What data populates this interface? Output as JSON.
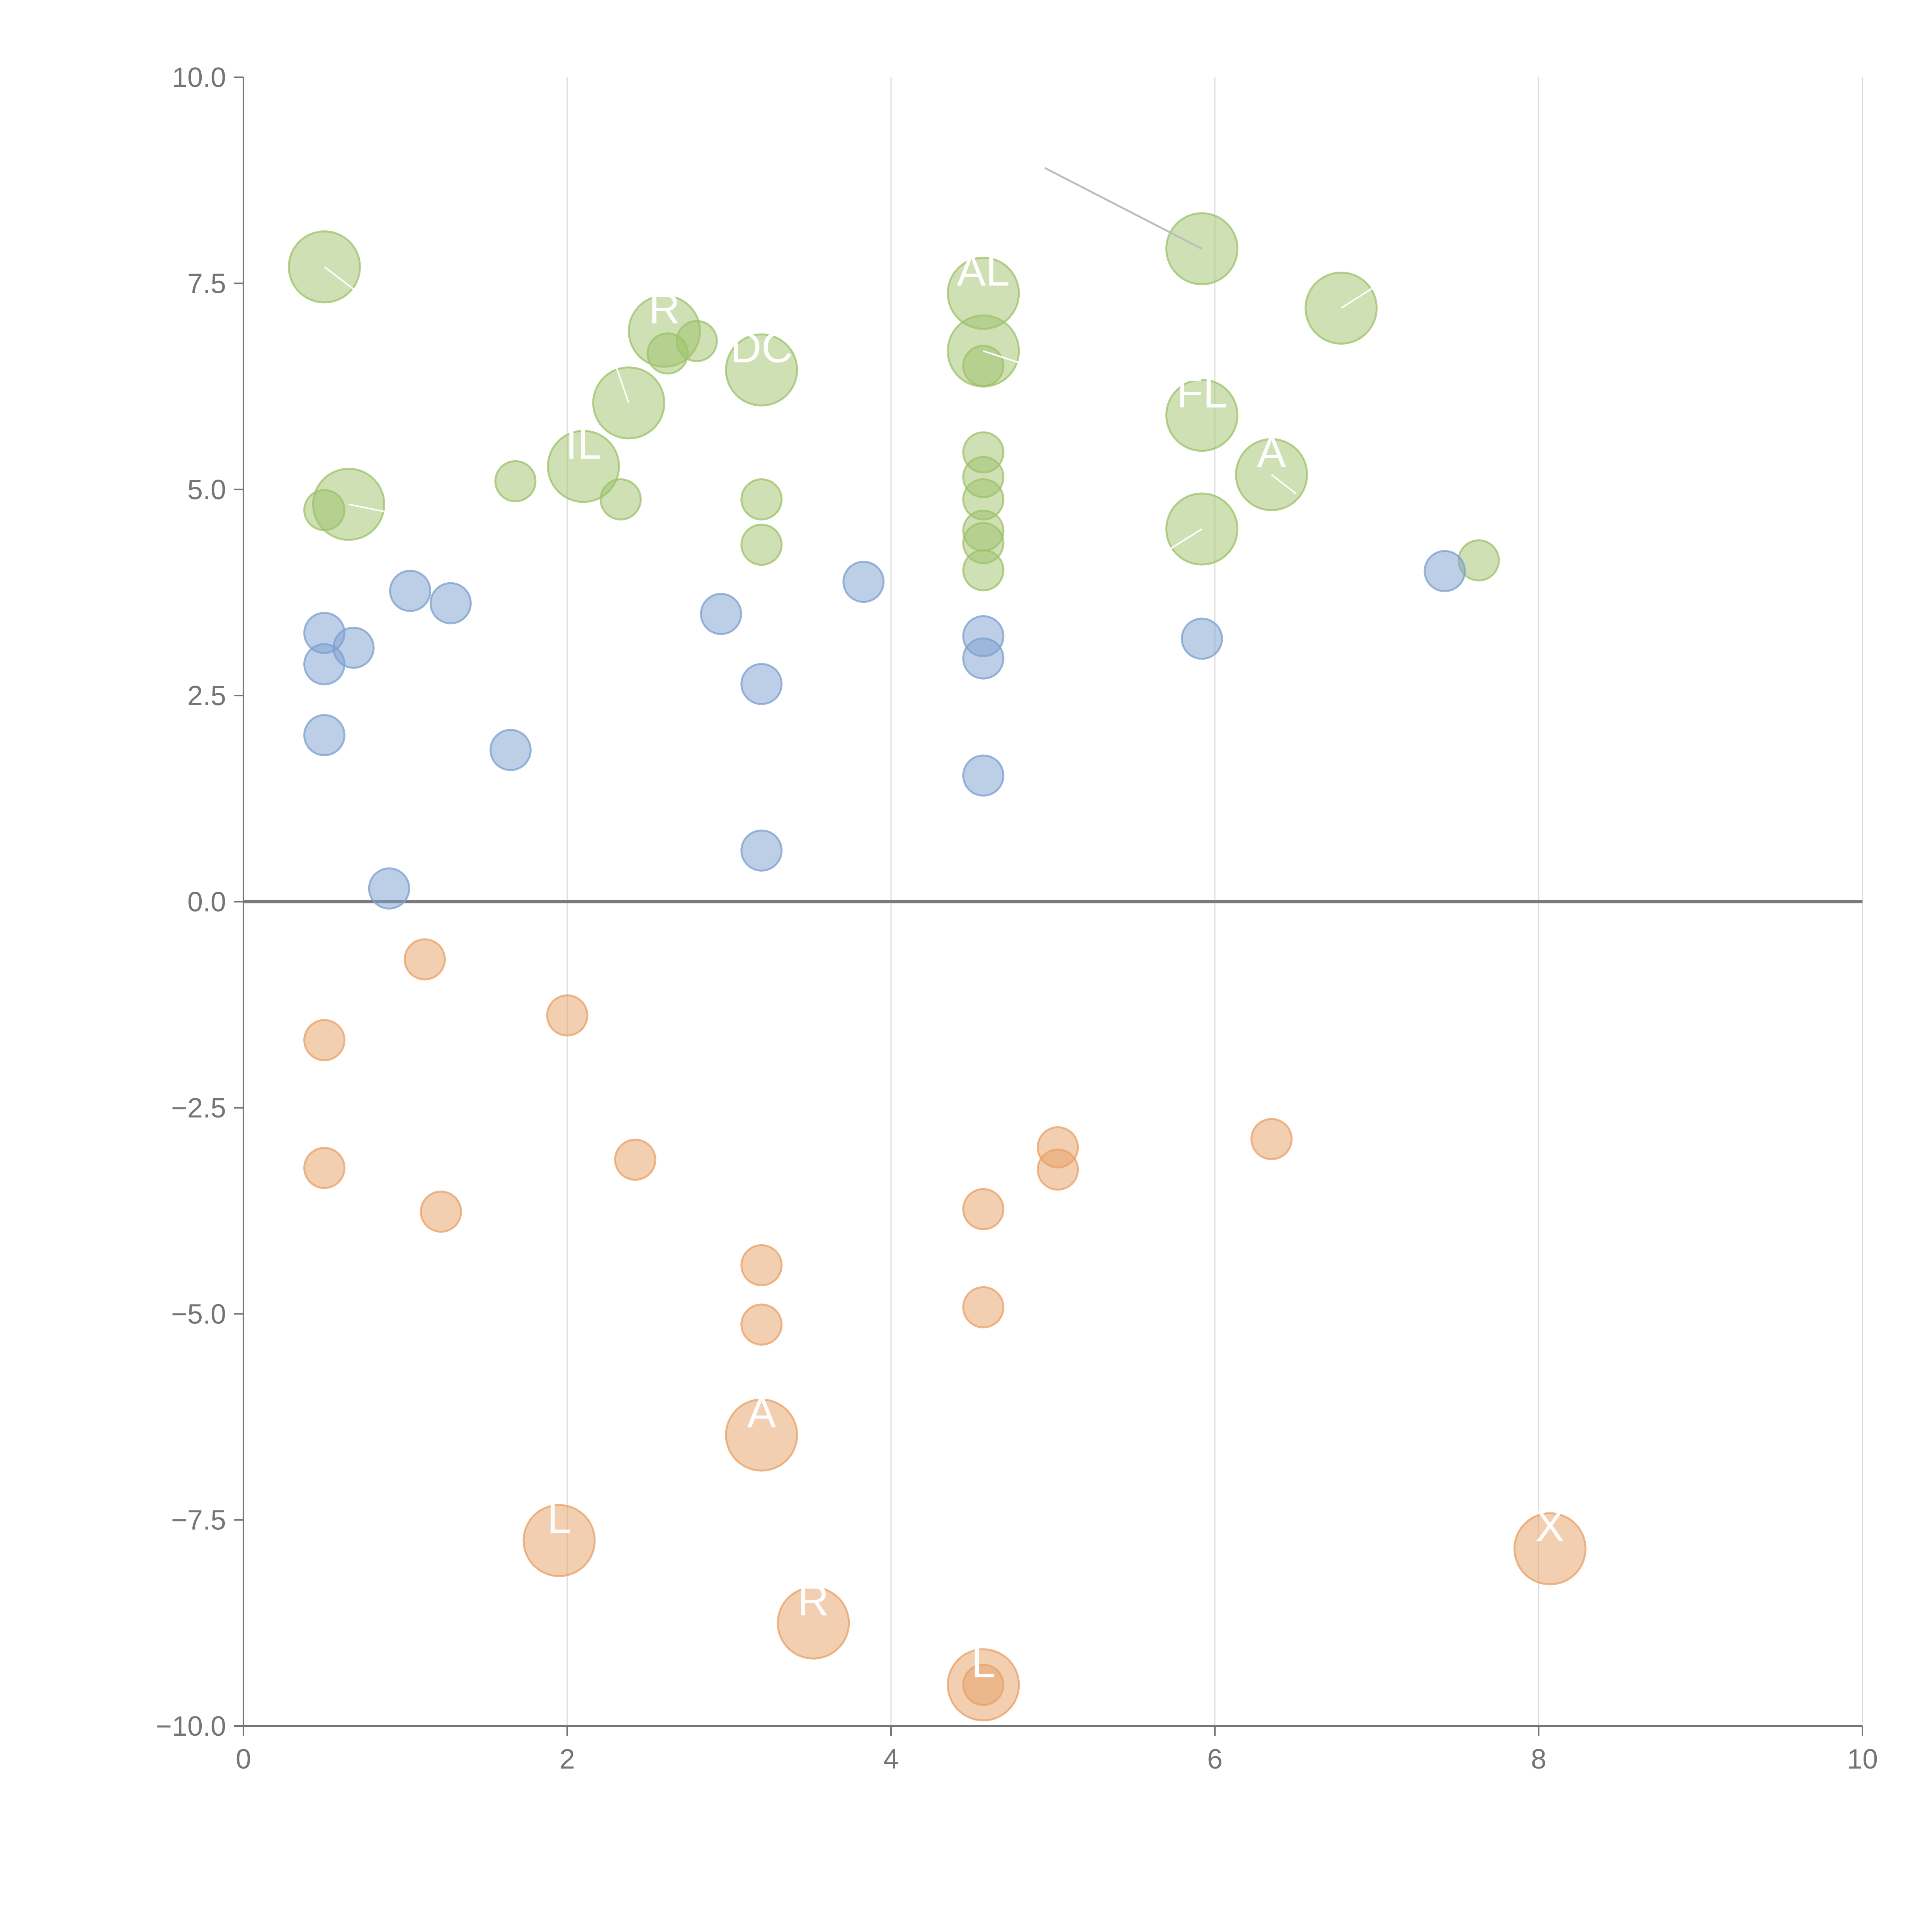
{
  "chart_data": {
    "type": "scatter",
    "subtype": "bubble",
    "title": "",
    "xlabel": "",
    "ylabel": "",
    "xlim": [
      0,
      10
    ],
    "ylim": [
      -10,
      10
    ],
    "x_ticks": [
      0,
      2,
      4,
      6,
      8,
      10
    ],
    "x_tick_labels": [
      "0",
      "2",
      "4",
      "6",
      "8",
      "10"
    ],
    "y_ticks": [
      10,
      7.5,
      5,
      2.5,
      0,
      -2.5,
      -5,
      -7.5,
      -10
    ],
    "y_tick_labels": [
      "10.0",
      "7.5",
      "5.0",
      "2.5",
      "0.0",
      "−2.5",
      "−5.0",
      "−7.5",
      "−10.0"
    ],
    "grid": "vertical lines at x ticks",
    "reference_line": {
      "y": 0
    },
    "colors": {
      "green": "#9dc16a",
      "blue": "#7b9fcf",
      "orange": "#e8a066",
      "axis": "#757575",
      "grid": "#dddddd",
      "label_text": "#ffffff",
      "leader_light": "#ffffff",
      "leader_dark": "#bdbdbd"
    },
    "series": [
      {
        "name": "green",
        "color": "#9dc16a",
        "points": [
          {
            "x": 0.5,
            "y": 7.7,
            "size": "large"
          },
          {
            "x": 0.5,
            "y": 4.75,
            "size": "small"
          },
          {
            "x": 0.65,
            "y": 4.82,
            "size": "large"
          },
          {
            "x": 1.68,
            "y": 5.1,
            "size": "small"
          },
          {
            "x": 2.1,
            "y": 5.28,
            "size": "large"
          },
          {
            "x": 2.33,
            "y": 4.88,
            "size": "small"
          },
          {
            "x": 2.38,
            "y": 6.05,
            "size": "large"
          },
          {
            "x": 2.6,
            "y": 6.92,
            "size": "large"
          },
          {
            "x": 2.62,
            "y": 6.65,
            "size": "small"
          },
          {
            "x": 2.8,
            "y": 6.8,
            "size": "small"
          },
          {
            "x": 3.2,
            "y": 6.45,
            "size": "large"
          },
          {
            "x": 3.2,
            "y": 4.88,
            "size": "small"
          },
          {
            "x": 3.2,
            "y": 4.33,
            "size": "small"
          },
          {
            "x": 4.57,
            "y": 7.38,
            "size": "large"
          },
          {
            "x": 4.57,
            "y": 6.68,
            "size": "large"
          },
          {
            "x": 4.57,
            "y": 6.5,
            "size": "small"
          },
          {
            "x": 4.57,
            "y": 5.45,
            "size": "small"
          },
          {
            "x": 4.57,
            "y": 5.15,
            "size": "small"
          },
          {
            "x": 4.57,
            "y": 4.88,
            "size": "small"
          },
          {
            "x": 4.57,
            "y": 4.5,
            "size": "small"
          },
          {
            "x": 4.57,
            "y": 4.35,
            "size": "small"
          },
          {
            "x": 4.57,
            "y": 4.02,
            "size": "small"
          },
          {
            "x": 5.92,
            "y": 7.92,
            "size": "large"
          },
          {
            "x": 5.92,
            "y": 5.9,
            "size": "large"
          },
          {
            "x": 5.92,
            "y": 4.52,
            "size": "large"
          },
          {
            "x": 6.35,
            "y": 5.18,
            "size": "large"
          },
          {
            "x": 6.78,
            "y": 7.2,
            "size": "large"
          },
          {
            "x": 7.63,
            "y": 4.14,
            "size": "small"
          }
        ]
      },
      {
        "name": "blue",
        "color": "#7b9fcf",
        "points": [
          {
            "x": 0.5,
            "y": 3.26,
            "size": "small"
          },
          {
            "x": 0.5,
            "y": 2.88,
            "size": "small"
          },
          {
            "x": 0.5,
            "y": 2.02,
            "size": "small"
          },
          {
            "x": 0.68,
            "y": 3.08,
            "size": "small"
          },
          {
            "x": 0.9,
            "y": 0.16,
            "size": "small"
          },
          {
            "x": 1.03,
            "y": 3.77,
            "size": "small"
          },
          {
            "x": 1.28,
            "y": 3.62,
            "size": "small"
          },
          {
            "x": 1.65,
            "y": 1.84,
            "size": "small"
          },
          {
            "x": 2.95,
            "y": 3.49,
            "size": "small"
          },
          {
            "x": 3.2,
            "y": 2.64,
            "size": "small"
          },
          {
            "x": 3.2,
            "y": 0.62,
            "size": "small"
          },
          {
            "x": 3.83,
            "y": 3.88,
            "size": "small"
          },
          {
            "x": 4.57,
            "y": 3.22,
            "size": "small"
          },
          {
            "x": 4.57,
            "y": 2.95,
            "size": "small"
          },
          {
            "x": 4.57,
            "y": 1.53,
            "size": "small"
          },
          {
            "x": 5.92,
            "y": 3.19,
            "size": "small"
          },
          {
            "x": 7.42,
            "y": 4.01,
            "size": "small"
          }
        ]
      },
      {
        "name": "orange",
        "color": "#e8a066",
        "points": [
          {
            "x": 0.5,
            "y": -1.68,
            "size": "small"
          },
          {
            "x": 0.5,
            "y": -3.23,
            "size": "small"
          },
          {
            "x": 1.12,
            "y": -0.7,
            "size": "small"
          },
          {
            "x": 1.22,
            "y": -3.76,
            "size": "small"
          },
          {
            "x": 2.0,
            "y": -1.38,
            "size": "small"
          },
          {
            "x": 1.95,
            "y": -7.75,
            "size": "large"
          },
          {
            "x": 2.42,
            "y": -3.13,
            "size": "small"
          },
          {
            "x": 3.2,
            "y": -4.41,
            "size": "small"
          },
          {
            "x": 3.2,
            "y": -5.13,
            "size": "small"
          },
          {
            "x": 3.2,
            "y": -6.47,
            "size": "large"
          },
          {
            "x": 3.52,
            "y": -8.75,
            "size": "large"
          },
          {
            "x": 4.57,
            "y": -3.73,
            "size": "small"
          },
          {
            "x": 4.57,
            "y": -4.92,
            "size": "small"
          },
          {
            "x": 4.57,
            "y": -9.5,
            "size": "large"
          },
          {
            "x": 4.57,
            "y": -9.5,
            "size": "small"
          },
          {
            "x": 5.03,
            "y": -2.98,
            "size": "small"
          },
          {
            "x": 5.03,
            "y": -3.25,
            "size": "small"
          },
          {
            "x": 6.35,
            "y": -2.88,
            "size": "small"
          },
          {
            "x": 8.07,
            "y": -7.85,
            "size": "large"
          }
        ]
      }
    ],
    "annotations": [
      {
        "text": "AL",
        "x": 4.57,
        "y": 7.38
      },
      {
        "text": "R",
        "x": 2.6,
        "y": 6.92
      },
      {
        "text": "DC",
        "x": 3.2,
        "y": 6.45
      },
      {
        "text": "FL",
        "x": 5.92,
        "y": 5.9
      },
      {
        "text": "IL",
        "x": 2.1,
        "y": 5.28
      },
      {
        "text": "A",
        "x": 6.35,
        "y": 5.18
      },
      {
        "text": "A",
        "x": 3.2,
        "y": -6.47
      },
      {
        "text": "L",
        "x": 1.95,
        "y": -7.75
      },
      {
        "text": "R",
        "x": 3.52,
        "y": -8.75
      },
      {
        "text": "L",
        "x": 4.57,
        "y": -9.5
      },
      {
        "text": "X",
        "x": 8.07,
        "y": -7.85
      }
    ],
    "leader_lines": [
      {
        "from": [
          0.5,
          7.7
        ],
        "to": [
          0.7,
          7.4
        ],
        "style": "light"
      },
      {
        "from": [
          0.65,
          4.82
        ],
        "to": [
          0.95,
          4.7
        ],
        "style": "light"
      },
      {
        "from": [
          2.38,
          6.05
        ],
        "to": [
          2.3,
          6.5
        ],
        "style": "light"
      },
      {
        "from": [
          4.57,
          6.68
        ],
        "to": [
          4.85,
          6.5
        ],
        "style": "light"
      },
      {
        "from": [
          5.92,
          4.52
        ],
        "to": [
          5.7,
          4.25
        ],
        "style": "light"
      },
      {
        "from": [
          6.35,
          5.18
        ],
        "to": [
          6.5,
          4.95
        ],
        "style": "light"
      },
      {
        "from": [
          6.78,
          7.2
        ],
        "to": [
          6.98,
          7.45
        ],
        "style": "light"
      },
      {
        "from": [
          5.92,
          7.92
        ],
        "to": [
          4.95,
          8.9
        ],
        "style": "dark"
      }
    ]
  }
}
